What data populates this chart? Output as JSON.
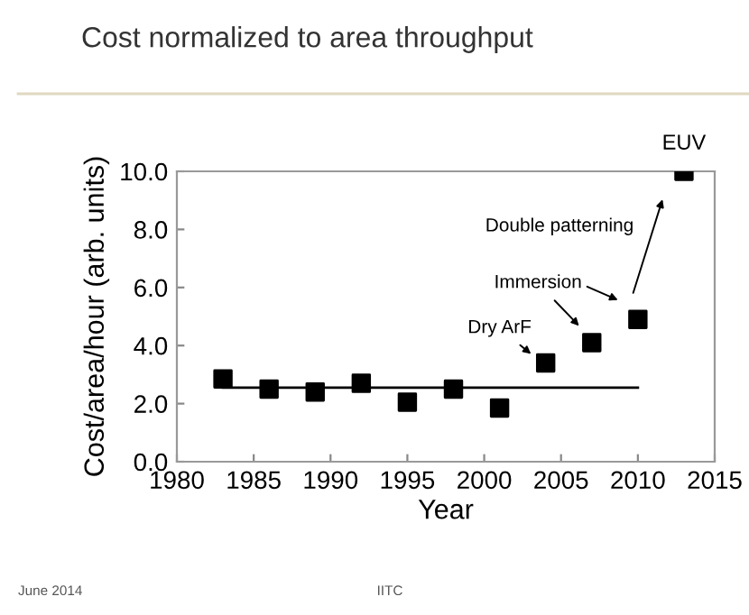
{
  "chart_data": {
    "type": "scatter",
    "title": "Cost normalized to area throughput",
    "xlabel": "Year",
    "ylabel": "Cost/area/hour (arb. units)",
    "series": [
      {
        "color": "#000000",
        "marker": "square",
        "x": [
          1983,
          1986,
          1989,
          1992,
          1995,
          1998,
          2001,
          2004,
          2007,
          2010,
          2013
        ],
        "values": [
          2.85,
          2.5,
          2.4,
          2.7,
          2.05,
          2.5,
          1.85,
          3.4,
          4.1,
          4.9,
          10.0
        ]
      },
      {
        "type": "line",
        "color": "#000000",
        "marker": "none",
        "line_style": "solid",
        "x": [
          1983,
          2010
        ],
        "values": [
          2.55,
          2.55
        ]
      }
    ],
    "xlim": [
      1980,
      2015
    ],
    "xticks": [
      1980,
      1985,
      1990,
      1995,
      2000,
      2005,
      2010,
      2015
    ],
    "ylim": [
      0,
      10
    ],
    "yticks": [
      {
        "value": 0,
        "label": "0.0"
      },
      {
        "value": 2,
        "label": "2.0"
      },
      {
        "value": 4,
        "label": "4.0"
      },
      {
        "value": 6,
        "label": "6.0"
      },
      {
        "value": 8,
        "label": "8.0"
      },
      {
        "value": 10,
        "label": "10.0"
      }
    ],
    "grid": false,
    "legend": false,
    "annotations": [
      {
        "text": "Dry ArF",
        "x": 2004,
        "y": 3.4
      },
      {
        "text": "Immersion",
        "x": 2007,
        "y": 4.1
      },
      "Double patterning",
      {
        "text": "EUV",
        "x": 2013,
        "y": 10.0
      },
      "June 2014",
      "IITC"
    ]
  }
}
